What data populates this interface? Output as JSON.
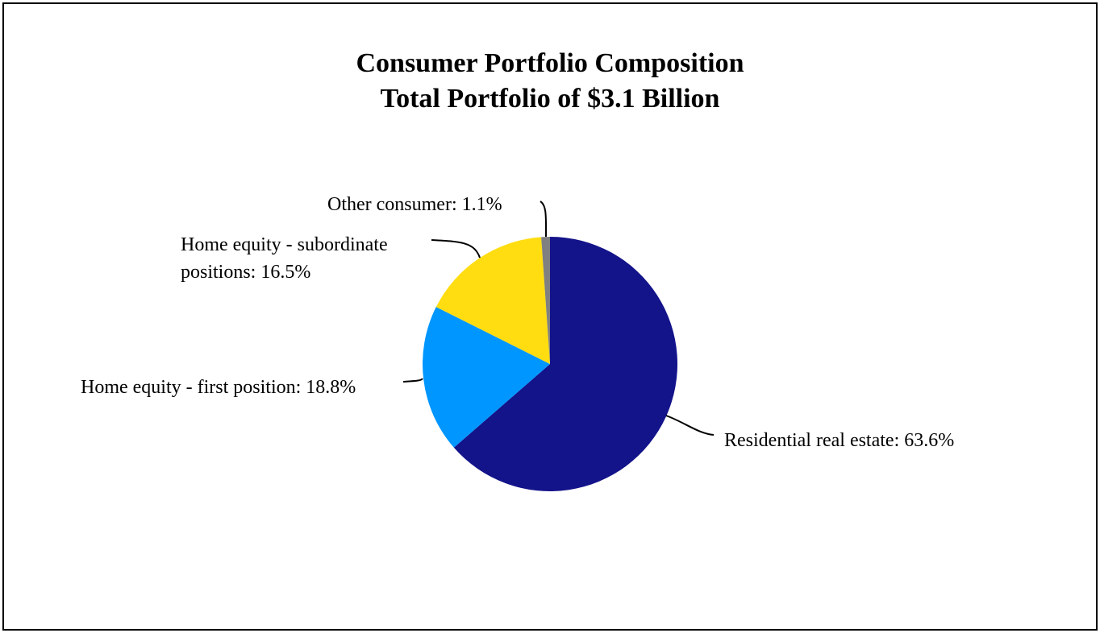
{
  "chart_data": {
    "type": "pie",
    "title": "Consumer Portfolio Composition",
    "subtitle": "Total Portfolio of $3.1 Billion",
    "slices": [
      {
        "label": "Residential real estate: 63.6%",
        "name": "Residential real estate",
        "value": 63.6,
        "color": "#13138A"
      },
      {
        "label": "Home equity - first position: 18.8%",
        "name": "Home equity - first position",
        "value": 18.8,
        "color": "#0096FF"
      },
      {
        "label_lines": [
          "Home equity - subordinate",
          "positions: 16.5%"
        ],
        "name": "Home equity - subordinate positions",
        "value": 16.5,
        "color": "#FFDD11"
      },
      {
        "label": "Other consumer: 1.1%",
        "name": "Other consumer",
        "value": 1.1,
        "color": "#808080"
      }
    ],
    "start_angle": "12 o'clock",
    "direction": "clockwise"
  }
}
